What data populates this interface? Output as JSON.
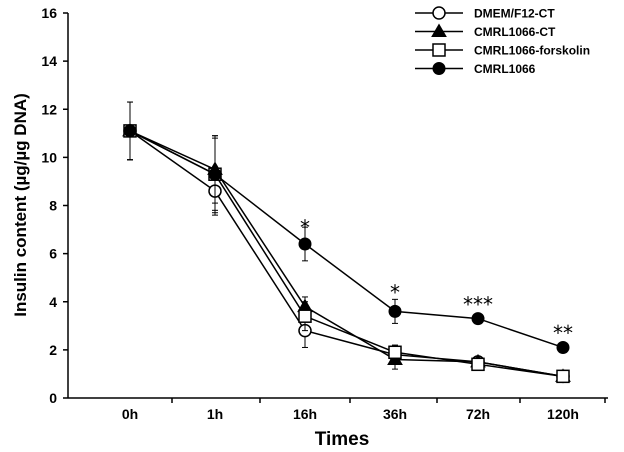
{
  "chart_data": {
    "type": "line",
    "title": "",
    "xlabel": "Times",
    "ylabel": "Insulin content (µg/µg DNA)",
    "categories": [
      "0h",
      "1h",
      "16h",
      "36h",
      "72h",
      "120h"
    ],
    "ylim": [
      0,
      16
    ],
    "yticks": [
      0,
      2,
      4,
      6,
      8,
      10,
      12,
      14,
      16
    ],
    "grid": false,
    "legend_position": "top-right",
    "series": [
      {
        "name": "DMEM/F12-CT",
        "marker": "circle-open",
        "values": [
          11.1,
          8.6,
          2.8,
          1.8,
          1.5,
          0.9
        ],
        "errors": [
          1.2,
          1.0,
          0.7,
          0.3,
          0.15,
          0.15
        ]
      },
      {
        "name": "CMRL1066-CT",
        "marker": "triangle-filled",
        "values": [
          11.1,
          9.5,
          3.8,
          1.6,
          1.5,
          0.9
        ],
        "errors": [
          1.2,
          1.4,
          0.4,
          0.4,
          0.15,
          0.15
        ]
      },
      {
        "name": "CMRL1066-forskolin",
        "marker": "square-open",
        "values": [
          11.1,
          9.3,
          3.4,
          1.9,
          1.4,
          0.9
        ],
        "errors": [
          1.2,
          1.6,
          0.6,
          0.3,
          0.15,
          0.15
        ]
      },
      {
        "name": "CMRL1066",
        "marker": "circle-filled",
        "values": [
          11.1,
          9.3,
          6.4,
          3.6,
          3.3,
          2.1
        ],
        "errors": [
          1.2,
          1.5,
          0.7,
          0.5,
          0.15,
          0.1
        ]
      }
    ],
    "annotations": [
      {
        "category": "16h",
        "y": 7.3,
        "text": "*"
      },
      {
        "category": "36h",
        "y": 4.6,
        "text": "*"
      },
      {
        "category": "72h",
        "y": 4.1,
        "text": "***"
      },
      {
        "category": "120h",
        "y": 2.9,
        "text": "**"
      }
    ]
  }
}
